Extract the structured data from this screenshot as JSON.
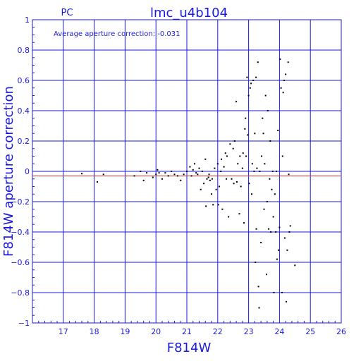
{
  "chart_data": {
    "type": "scatter",
    "title": "lmc_u4b104",
    "subtitle": "PC",
    "annotation": "Average aperture correction: -0.031",
    "xlabel": "F814W",
    "ylabel": "F814W aperture correction",
    "xlim": [
      16,
      26
    ],
    "ylim": [
      -1,
      1
    ],
    "grid": true,
    "xticks": [
      17,
      18,
      19,
      20,
      21,
      22,
      23,
      24,
      25,
      26
    ],
    "yticks": [
      -1,
      -0.8,
      -0.6,
      -0.4,
      -0.2,
      0,
      0.2,
      0.4,
      0.6,
      0.8,
      1
    ],
    "ytick_labels": [
      "−1",
      "−0.8",
      "−0.6",
      "−0.4",
      "−0.2",
      "0",
      "0.2",
      "0.4",
      "0.6",
      "0.8",
      "1"
    ],
    "reference_lines": [
      {
        "name": "zero",
        "y": 0,
        "color": "#1a1adf"
      },
      {
        "name": "average",
        "y": -0.031,
        "color": "#c0392b"
      }
    ],
    "points": [
      [
        17.6,
        -0.015
      ],
      [
        18.1,
        -0.07
      ],
      [
        18.3,
        -0.02
      ],
      [
        19.3,
        -0.03
      ],
      [
        19.5,
        0.0
      ],
      [
        19.6,
        -0.06
      ],
      [
        19.7,
        -0.01
      ],
      [
        19.9,
        -0.04
      ],
      [
        20.0,
        -0.02
      ],
      [
        20.05,
        0.01
      ],
      [
        20.1,
        -0.01
      ],
      [
        20.2,
        -0.05
      ],
      [
        20.3,
        -0.01
      ],
      [
        20.4,
        -0.03
      ],
      [
        20.5,
        0.0
      ],
      [
        20.6,
        -0.02
      ],
      [
        20.7,
        -0.03
      ],
      [
        20.8,
        -0.06
      ],
      [
        20.9,
        -0.02
      ],
      [
        21.0,
        0.0
      ],
      [
        21.1,
        0.03
      ],
      [
        21.15,
        -0.03
      ],
      [
        21.2,
        0.01
      ],
      [
        21.25,
        0.05
      ],
      [
        21.3,
        -0.01
      ],
      [
        21.35,
        -0.02
      ],
      [
        21.4,
        0.02
      ],
      [
        21.45,
        -0.12
      ],
      [
        21.5,
        0.0
      ],
      [
        21.55,
        -0.08
      ],
      [
        21.6,
        0.08
      ],
      [
        21.62,
        -0.23
      ],
      [
        21.65,
        -0.05
      ],
      [
        21.7,
        -0.04
      ],
      [
        21.72,
        -0.02
      ],
      [
        21.75,
        -0.06
      ],
      [
        21.8,
        -0.15
      ],
      [
        21.82,
        -0.05
      ],
      [
        21.85,
        -0.22
      ],
      [
        21.9,
        0.02
      ],
      [
        21.95,
        -0.12
      ],
      [
        22.0,
        0.05
      ],
      [
        22.02,
        -0.22
      ],
      [
        22.05,
        -0.1
      ],
      [
        22.1,
        0.0
      ],
      [
        22.12,
        0.08
      ],
      [
        22.15,
        -0.25
      ],
      [
        22.2,
        0.03
      ],
      [
        22.25,
        0.12
      ],
      [
        22.28,
        -0.05
      ],
      [
        22.3,
        0.1
      ],
      [
        22.35,
        -0.3
      ],
      [
        22.4,
        0.18
      ],
      [
        22.45,
        -0.05
      ],
      [
        22.5,
        0.15
      ],
      [
        22.52,
        -0.08
      ],
      [
        22.55,
        0.2
      ],
      [
        22.6,
        0.46
      ],
      [
        22.62,
        -0.07
      ],
      [
        22.65,
        0.05
      ],
      [
        22.7,
        -0.28
      ],
      [
        22.72,
        0.1
      ],
      [
        22.75,
        -0.1
      ],
      [
        22.8,
        0.02
      ],
      [
        22.82,
        0.12
      ],
      [
        22.85,
        -0.34
      ],
      [
        22.88,
        0.28
      ],
      [
        22.9,
        0.35
      ],
      [
        22.92,
        0.1
      ],
      [
        22.95,
        0.62
      ],
      [
        22.97,
        0.24
      ],
      [
        23.0,
        0.5
      ],
      [
        23.02,
        -0.08
      ],
      [
        23.05,
        0.55
      ],
      [
        23.08,
        0.58
      ],
      [
        23.1,
        -0.15
      ],
      [
        23.12,
        0.05
      ],
      [
        23.15,
        0.6
      ],
      [
        23.18,
        0.0
      ],
      [
        23.2,
        0.25
      ],
      [
        23.22,
        -0.6
      ],
      [
        23.24,
        0.62
      ],
      [
        23.25,
        -0.38
      ],
      [
        23.27,
        0.02
      ],
      [
        23.3,
        0.72
      ],
      [
        23.32,
        -0.76
      ],
      [
        23.34,
        -0.9
      ],
      [
        23.36,
        0.0
      ],
      [
        23.4,
        -0.47
      ],
      [
        23.42,
        0.1
      ],
      [
        23.45,
        0.35
      ],
      [
        23.48,
        0.25
      ],
      [
        23.5,
        -0.25
      ],
      [
        23.52,
        0.05
      ],
      [
        23.55,
        0.5
      ],
      [
        23.58,
        -0.68
      ],
      [
        23.6,
        -0.2
      ],
      [
        23.62,
        0.4
      ],
      [
        23.65,
        -0.38
      ],
      [
        23.68,
        -0.05
      ],
      [
        23.7,
        0.2
      ],
      [
        23.72,
        -0.4
      ],
      [
        23.75,
        -0.12
      ],
      [
        23.78,
        0.0
      ],
      [
        23.8,
        -0.3
      ],
      [
        23.82,
        -0.8
      ],
      [
        23.85,
        -0.15
      ],
      [
        23.88,
        -0.4
      ],
      [
        23.9,
        0.0
      ],
      [
        23.92,
        -0.58
      ],
      [
        23.95,
        0.27
      ],
      [
        23.97,
        -0.52
      ],
      [
        24.0,
        -0.37
      ],
      [
        24.02,
        0.74
      ],
      [
        24.05,
        0.55
      ],
      [
        24.08,
        -0.8
      ],
      [
        24.1,
        0.1
      ],
      [
        24.12,
        0.52
      ],
      [
        24.15,
        0.6
      ],
      [
        24.17,
        -0.44
      ],
      [
        24.2,
        0.64
      ],
      [
        24.22,
        -0.86
      ],
      [
        24.25,
        -0.52
      ],
      [
        24.28,
        0.72
      ],
      [
        24.3,
        -0.02
      ],
      [
        24.32,
        -0.4
      ],
      [
        24.35,
        -0.36
      ],
      [
        24.5,
        -0.62
      ]
    ]
  }
}
